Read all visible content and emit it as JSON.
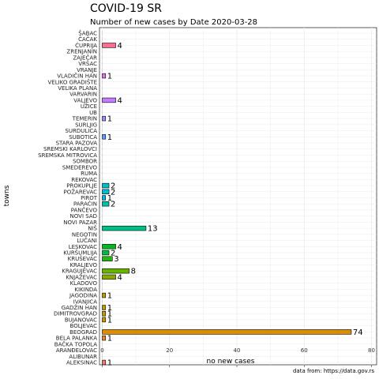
{
  "chart_data": {
    "type": "bar",
    "orientation": "horizontal",
    "title": "COVID-19 SR",
    "subtitle": "Number of new cases by Date 2020-03-28",
    "xlabel": "no new cases",
    "ylabel": "towns",
    "caption": "data from: https://data.gov.rs",
    "xlim": [
      0,
      80
    ],
    "xticks": [
      0,
      20,
      40,
      60,
      80
    ],
    "grid": true,
    "categories": [
      "ŠABAC",
      "ČAČAK",
      "ĆUPRIJA",
      "ZRENJANIN",
      "ZAJEČAR",
      "VRŠAC",
      "VRANJE",
      "VLADIČIN HAN",
      "VELIKO GRADIŠTE",
      "VELIKA PLANA",
      "VARVARIN",
      "VALJEVO",
      "UŽICE",
      "UB",
      "TEMERIN",
      "SURLJIG",
      "SURDULICA",
      "SUBOTICA",
      "STARA PAZOVA",
      "SREMSKI KARLOVCI",
      "SREMSKA MITROVICA",
      "SOMBOR",
      "SMEDEREVO",
      "RUMA",
      "REKOVAC",
      "PROKUPLJE",
      "POŽAREVAC",
      "PIROT",
      "PARAĆIN",
      "PANČEVO",
      "NOVI SAD",
      "NOVI PAZAR",
      "NIŠ",
      "NEGOTIN",
      "LUČANI",
      "LESKOVAC",
      "KURŠUMLIJA",
      "KRUŠEVAC",
      "KRALJEVO",
      "KRAGUJEVAC",
      "KNJAŽEVAC",
      "KLADOVO",
      "KIKINDA",
      "JAGODINA",
      "IVANJICA",
      "GADŽIN HAN",
      "DIMITROVGRAD",
      "BUJANOVAC",
      "BOLJEVAC",
      "BEOGRAD",
      "BELA PALANKA",
      "BAČKA TOPOLA",
      "ARANĐELOVAC",
      "ALIBUNAR",
      "ALEKSINAC"
    ],
    "values": [
      0,
      0,
      4,
      0,
      0,
      0,
      0,
      1,
      0,
      0,
      0,
      4,
      0,
      0,
      1,
      0,
      0,
      1,
      0,
      0,
      0,
      0,
      0,
      0,
      0,
      2,
      2,
      1,
      2,
      0,
      0,
      0,
      13,
      0,
      0,
      4,
      2,
      3,
      0,
      8,
      4,
      0,
      0,
      1,
      0,
      1,
      1,
      1,
      0,
      74,
      1,
      0,
      0,
      0,
      1
    ],
    "colors": [
      "#f8766d",
      "#f27d52",
      "#ff6c91",
      "#f57f45",
      "#ee8232",
      "#e68613",
      "#de8c00",
      "#e76bf3",
      "#d7a000",
      "#cfa900",
      "#b8b000",
      "#c77cff",
      "#a3a500",
      "#93aa00",
      "#9590ff",
      "#7cae00",
      "#5bb300",
      "#619cff",
      "#39b600",
      "#1ebb00",
      "#00ba38",
      "#00bc56",
      "#00be6c",
      "#00c08b",
      "#00c1a3",
      "#00bfc4",
      "#00bbd4",
      "#00b8e7",
      "#00c1a9",
      "#00c0b8",
      "#00bfcf",
      "#00b4ef",
      "#00c087",
      "#00b0f6",
      "#00a9ff",
      "#00b81f",
      "#00ba42",
      "#28b40f",
      "#39a0ff",
      "#66b400",
      "#86aa00",
      "#9d9c00",
      "#ad9300",
      "#c09a00",
      "#c59900",
      "#b79f00",
      "#c49a00",
      "#c99700",
      "#d39200",
      "#de8c00",
      "#e5872a",
      "#ec8239",
      "#f07c4d",
      "#f6765f",
      "#f8766d"
    ],
    "bar_outline": "#000000"
  }
}
